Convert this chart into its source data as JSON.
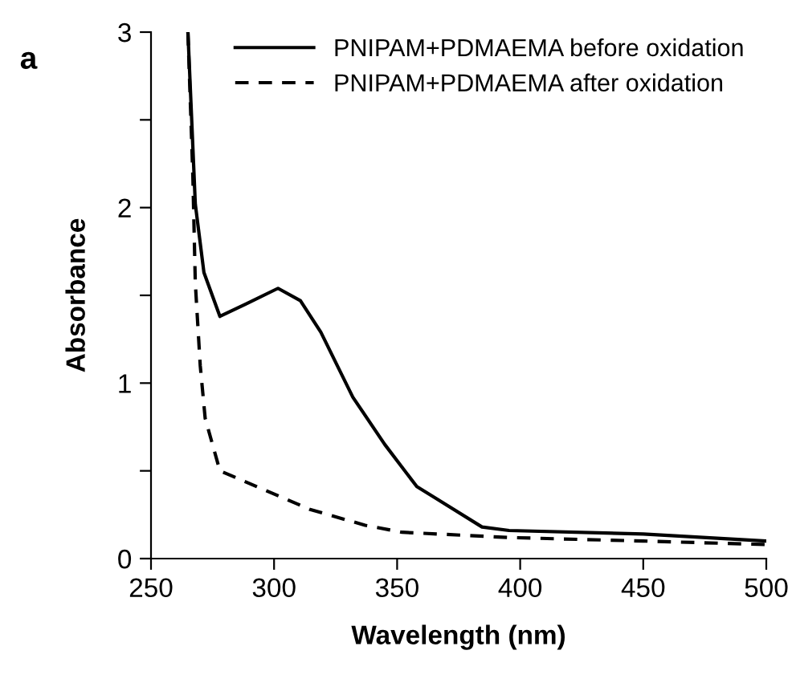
{
  "chart_data": {
    "type": "line",
    "title": "a",
    "xlabel": "Wavelength (nm)",
    "ylabel": "Absorbance",
    "xlim": [
      250,
      500
    ],
    "xticks": [
      250,
      300,
      350,
      400,
      450,
      500
    ],
    "ylim": [
      0,
      3
    ],
    "yticks": [
      0,
      {
        "value": 0.5,
        "label": null
      },
      1,
      {
        "value": 1.5,
        "label": null
      },
      2,
      {
        "value": 2.5,
        "label": null
      },
      3
    ],
    "grid": false,
    "legend": "top right",
    "marker": "none",
    "series": [
      {
        "name": "PNIPAM+PDMAEMA before oxidation",
        "color": "#000000",
        "line_style": "solid",
        "x": [
          265,
          268,
          271.5,
          278,
          288.5,
          301.6,
          310.7,
          319,
          332,
          345,
          358,
          365,
          384.5,
          395.5,
          450,
          500
        ],
        "values": [
          3,
          2.02,
          1.63,
          1.38,
          1.45,
          1.54,
          1.47,
          1.29,
          0.92,
          0.65,
          0.41,
          0.35,
          0.18,
          0.16,
          0.14,
          0.1
        ]
      },
      {
        "name": "PNIPAM+PDMAEMA after oxidation",
        "color": "#000000",
        "line_style": "dashed",
        "x": [
          265,
          267,
          268,
          270,
          272,
          278,
          293,
          314.6,
          337,
          352,
          395.5,
          450,
          500
        ],
        "values": [
          3,
          2.18,
          1.57,
          1.1,
          0.8,
          0.5,
          0.41,
          0.28,
          0.19,
          0.15,
          0.12,
          0.1,
          0.08
        ]
      }
    ]
  }
}
